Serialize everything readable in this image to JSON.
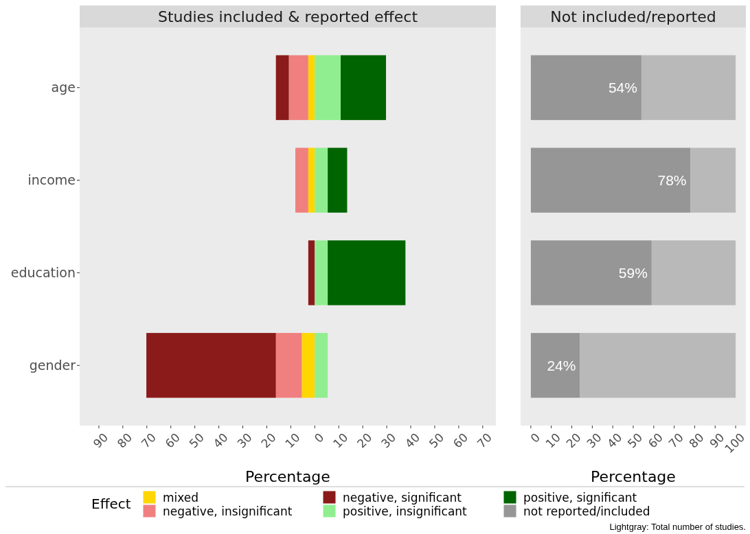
{
  "chart_data": [
    {
      "type": "bar",
      "orientation": "horizontal",
      "stacked": true,
      "title": "Studies included & reported effect",
      "xlabel": "Percentage",
      "legend": "bottom",
      "legend_title": "Effect",
      "categories": [
        "age",
        "income",
        "education",
        "gender"
      ],
      "xlim": [
        -98,
        75.5
      ],
      "xticks": [
        {
          "value": -90,
          "label": "90"
        },
        {
          "value": -80,
          "label": "80"
        },
        {
          "value": -70,
          "label": "70"
        },
        {
          "value": -60,
          "label": "60"
        },
        {
          "value": -50,
          "label": "50"
        },
        {
          "value": -40,
          "label": "40"
        },
        {
          "value": -30,
          "label": "30"
        },
        {
          "value": -20,
          "label": "20"
        },
        {
          "value": -10,
          "label": "10"
        },
        0,
        10,
        20,
        30,
        40,
        50,
        60,
        70
      ],
      "grid": false,
      "series": [
        {
          "name": "mixed",
          "color": "#ffd700",
          "values": [
            -2.7,
            -2.7,
            null,
            -5.4
          ]
        },
        {
          "name": "negative, insignificant",
          "color": "#f08080",
          "values": [
            -8.1,
            -5.4,
            null,
            -10.8
          ]
        },
        {
          "name": "negative, significant",
          "color": "#8b1a1a",
          "values": [
            -5.4,
            null,
            -2.7,
            -54
          ]
        },
        {
          "name": "positive, insignificant",
          "color": "#90ee90",
          "values": [
            10.8,
            5.4,
            5.4,
            5.4
          ]
        },
        {
          "name": "positive, significant",
          "color": "#006400",
          "values": [
            18.9,
            8.1,
            32.4,
            null
          ]
        }
      ]
    },
    {
      "type": "bar",
      "orientation": "horizontal",
      "stacked": true,
      "title": "Not included/reported",
      "xlabel": "Percentage",
      "legend": "bottom",
      "tick_labels": "x",
      "categories": [
        null,
        null,
        null,
        null
      ],
      "xlim": [
        -5,
        105
      ],
      "xticks": [
        0,
        10,
        20,
        30,
        40,
        50,
        60,
        70,
        80,
        90,
        100
      ],
      "grid": false,
      "annotations": [
        "Lightgray: Total number of studies."
      ],
      "series": [
        {
          "name": "not reported/included",
          "color": "#969696",
          "values": [
            54,
            78,
            59,
            24
          ],
          "value_labels": [
            "54%",
            "78%",
            "59%",
            "24%"
          ]
        },
        {
          "color": "#b9b9b9",
          "values": [
            46,
            22,
            41,
            76
          ]
        }
      ]
    }
  ]
}
